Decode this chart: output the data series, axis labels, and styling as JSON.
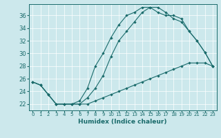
{
  "xlabel": "Humidex (Indice chaleur)",
  "background_color": "#cce8ec",
  "line_color": "#1a6b6b",
  "grid_color": "#b0d8dc",
  "xlim": [
    -0.5,
    23.5
  ],
  "ylim": [
    21.0,
    37.8
  ],
  "yticks": [
    22,
    24,
    26,
    28,
    30,
    32,
    34,
    36
  ],
  "xticks": [
    0,
    1,
    2,
    3,
    4,
    5,
    6,
    7,
    8,
    9,
    10,
    11,
    12,
    13,
    14,
    15,
    16,
    17,
    18,
    19,
    20,
    21,
    22,
    23
  ],
  "line1_x": [
    0,
    1,
    2,
    3,
    4,
    5,
    6,
    7,
    8,
    9,
    10,
    11,
    12,
    13,
    14,
    15,
    16,
    17,
    18,
    19,
    20,
    21,
    22,
    23
  ],
  "line1_y": [
    25.5,
    25.0,
    23.5,
    22.0,
    22.0,
    22.0,
    22.5,
    24.5,
    28.0,
    30.0,
    32.5,
    34.5,
    36.0,
    36.5,
    37.3,
    37.3,
    36.5,
    36.0,
    36.0,
    35.5,
    33.5,
    32.0,
    30.2,
    28.0
  ],
  "line2_x": [
    0,
    1,
    2,
    3,
    4,
    5,
    6,
    7,
    8,
    9,
    10,
    11,
    12,
    13,
    14,
    15,
    16,
    17,
    18,
    19,
    20,
    21,
    22,
    23
  ],
  "line2_y": [
    25.5,
    25.0,
    23.5,
    22.0,
    22.0,
    22.0,
    22.0,
    23.0,
    24.5,
    26.5,
    29.5,
    32.0,
    33.5,
    35.0,
    36.5,
    37.3,
    37.3,
    36.5,
    35.5,
    35.0,
    33.5,
    32.0,
    30.2,
    28.0
  ],
  "line3_x": [
    0,
    1,
    2,
    3,
    4,
    5,
    6,
    7,
    8,
    9,
    10,
    11,
    12,
    13,
    14,
    15,
    16,
    17,
    18,
    19,
    20,
    21,
    22,
    23
  ],
  "line3_y": [
    25.5,
    25.0,
    23.5,
    22.0,
    22.0,
    22.0,
    22.0,
    22.0,
    22.5,
    23.0,
    23.5,
    24.0,
    24.5,
    25.0,
    25.5,
    26.0,
    26.5,
    27.0,
    27.5,
    28.0,
    28.5,
    28.5,
    28.5,
    28.0
  ]
}
